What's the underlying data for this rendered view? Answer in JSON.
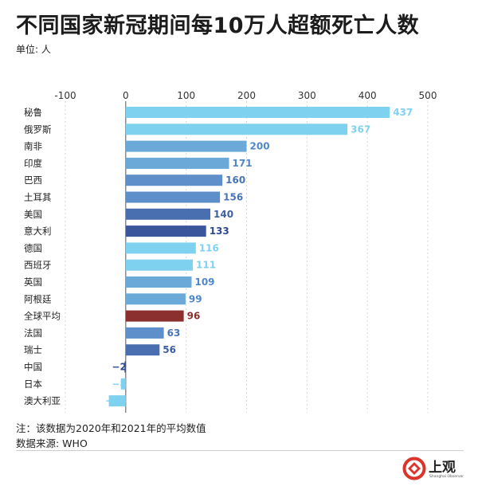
{
  "header": {
    "title": "不同国家新冠期间每10万人超额死亡人数",
    "unit": "单位: 人"
  },
  "chart_data": {
    "type": "bar",
    "orientation": "horizontal",
    "title": "不同国家新冠期间每10万人超额死亡人数",
    "xlabel": "",
    "ylabel": "",
    "xlim": [
      -100,
      500
    ],
    "ticks": [
      -100,
      0,
      100,
      200,
      300,
      400,
      500
    ],
    "categories": [
      "秘鲁",
      "俄罗斯",
      "南非",
      "印度",
      "巴西",
      "土耳其",
      "美国",
      "意大利",
      "德国",
      "西班牙",
      "英国",
      "阿根廷",
      "全球平均",
      "法国",
      "瑞士",
      "中国",
      "日本",
      "澳大利亚"
    ],
    "values": [
      437,
      367,
      200,
      171,
      160,
      156,
      140,
      133,
      116,
      111,
      109,
      99,
      96,
      63,
      56,
      -2,
      -8,
      -28
    ],
    "colors": [
      "#7fd1f0",
      "#7fd1f0",
      "#6aa9d8",
      "#6aa9d8",
      "#5f8fcb",
      "#5f8fcb",
      "#4a6fb0",
      "#3a559c",
      "#7fd1f0",
      "#7fd1f0",
      "#6aa9d8",
      "#6aa9d8",
      "#8b2f2f",
      "#5f8fcb",
      "#4a6fb0",
      "#3a559c",
      "#7fd1f0",
      "#7fd1f0"
    ],
    "label_colors": [
      "#7fd1f0",
      "#7fd1f0",
      "#4f87c7",
      "#4f87c7",
      "#4a74b8",
      "#4a74b8",
      "#3e5fa3",
      "#2f4a8e",
      "#7fd1f0",
      "#7fd1f0",
      "#4f87c7",
      "#4f87c7",
      "#8b2f2f",
      "#4a74b8",
      "#3e5fa3",
      "#2f4a8e",
      "#7fd1f0",
      "#7fd1f0"
    ],
    "highlight_category": "全球平均",
    "highlight_color": "#8b2f2f"
  },
  "footer": {
    "note": "注：该数据为2020年和2021年的平均数值",
    "source": "数据来源: WHO"
  },
  "brand": {
    "name": "上观",
    "subtitle": "Shanghai Observer",
    "color": "#d9352b"
  }
}
